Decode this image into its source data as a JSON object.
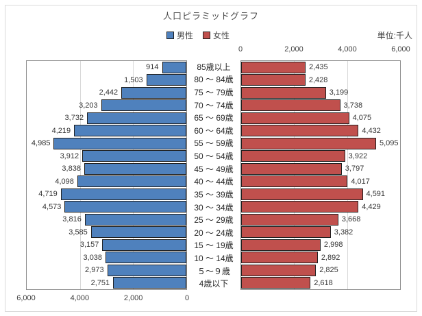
{
  "chart": {
    "title": "人口ピラミッドグラフ",
    "unit": "単位:千人",
    "legend": {
      "male": "男性",
      "female": "女性"
    },
    "colors": {
      "male": "#4f81bd",
      "female": "#c0504d"
    }
  },
  "chart_data": {
    "type": "bar",
    "variant": "population-pyramid",
    "title": "人口ピラミッドグラフ",
    "unit_label": "単位:千人",
    "categories": [
      "85歳以上",
      "80 ～ 84歳",
      "75 ～ 79歳",
      "70 ～ 74歳",
      "65 ～ 69歳",
      "60 ～ 64歳",
      "55 ～ 59歳",
      "50 ～ 54歳",
      "45 ～ 49歳",
      "40 ～ 44歳",
      "35 ～ 39歳",
      "30 ～ 34歳",
      "25 ～ 29歳",
      "20 ～ 24歳",
      "15 ～ 19歳",
      "10 ～ 14歳",
      "５～９歳",
      "4歳以下"
    ],
    "series": [
      {
        "name": "男性",
        "side": "left",
        "color": "#4f81bd",
        "values": [
          914,
          1503,
          2442,
          3203,
          3732,
          4219,
          4985,
          3912,
          3838,
          4098,
          4719,
          4573,
          3816,
          3585,
          3157,
          3038,
          2973,
          2751
        ]
      },
      {
        "name": "女性",
        "side": "right",
        "color": "#c0504d",
        "values": [
          2435,
          2428,
          3199,
          3738,
          4075,
          4432,
          5095,
          3922,
          3797,
          4017,
          4591,
          4429,
          3668,
          3382,
          2998,
          2892,
          2825,
          2618
        ]
      }
    ],
    "xlim": [
      0,
      6000
    ],
    "top_axis_ticks": [
      "0",
      "2,000",
      "4,000",
      "6,000"
    ],
    "bottom_axis_ticks": [
      "6,000",
      "4,000",
      "2,000",
      "0"
    ],
    "grid": true,
    "gridline_values": [
      2000,
      4000
    ],
    "legend_position": "top-center",
    "data_labels": "outside-end"
  }
}
